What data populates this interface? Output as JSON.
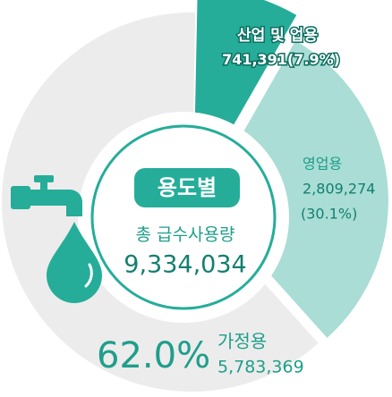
{
  "chart_data": {
    "type": "pie",
    "center_title": "용도별",
    "center_label": "총 급수사용량",
    "total_label": "9,334,034",
    "total": 9334034,
    "categories": [
      "산업 및 업용",
      "영업용",
      "가정용"
    ],
    "values": [
      741391,
      2809274,
      5783369
    ],
    "value_labels": [
      "741,391",
      "2,809,274",
      "5,783,369"
    ],
    "percents": [
      7.9,
      30.1,
      62.0
    ],
    "percent_labels": [
      "(7.9%)",
      "(30.1%)",
      "62.0%"
    ],
    "colors": [
      "#25ad99",
      "#a9ddd5",
      "#ececec"
    ]
  }
}
